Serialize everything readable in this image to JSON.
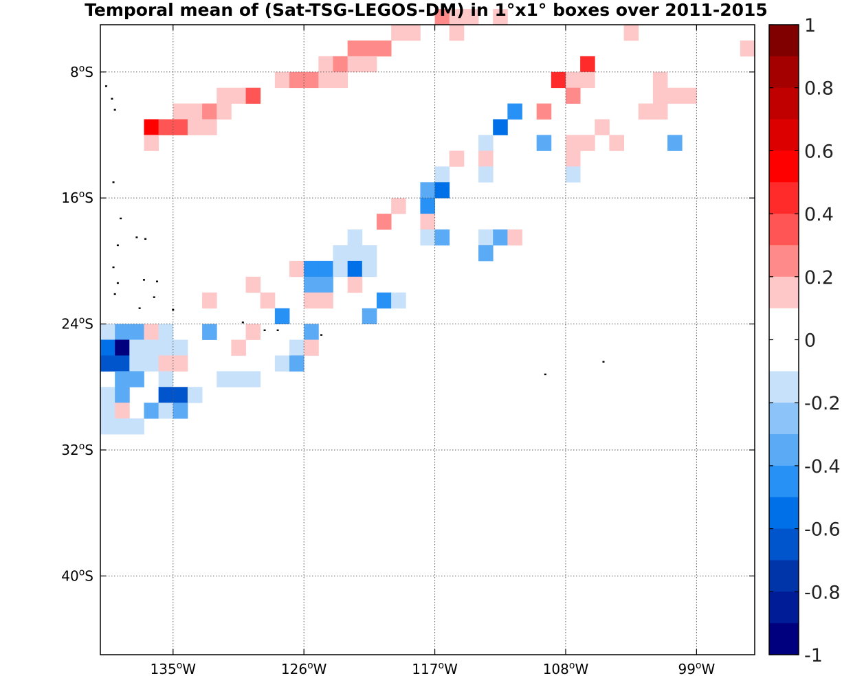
{
  "chart_data": {
    "type": "heatmap",
    "title": "Temporal mean of (Sat-TSG-LEGOS-DM) in 1°x1° boxes over 2011-2015",
    "xlabel": "",
    "ylabel": "",
    "xlim": [
      -140,
      -95
    ],
    "ylim": [
      -45,
      -5
    ],
    "grid": true,
    "x_ticks": [
      {
        "value": -135,
        "label": "135",
        "sup": "o",
        "suffix": "W"
      },
      {
        "value": -126,
        "label": "126",
        "sup": "o",
        "suffix": "W"
      },
      {
        "value": -117,
        "label": "117",
        "sup": "o",
        "suffix": "W"
      },
      {
        "value": -108,
        "label": "108",
        "sup": "o",
        "suffix": "W"
      },
      {
        "value": -99,
        "label": "99",
        "sup": "o",
        "suffix": "W"
      }
    ],
    "y_ticks": [
      {
        "value": -8,
        "label": "8",
        "sup": "o",
        "suffix": "S"
      },
      {
        "value": -16,
        "label": "16",
        "sup": "o",
        "suffix": "S"
      },
      {
        "value": -24,
        "label": "24",
        "sup": "o",
        "suffix": "S"
      },
      {
        "value": -32,
        "label": "32",
        "sup": "o",
        "suffix": "S"
      },
      {
        "value": -40,
        "label": "40",
        "sup": "o",
        "suffix": "S"
      }
    ],
    "colorbar": {
      "range": [
        -1,
        1
      ],
      "tick_labels": [
        "1",
        "0.8",
        "0.6",
        "0.4",
        "0.2",
        "0",
        "-0.2",
        "-0.4",
        "-0.6",
        "-0.8",
        "-1"
      ],
      "tick_values": [
        1,
        0.8,
        0.6,
        0.4,
        0.2,
        0,
        -0.2,
        -0.4,
        -0.6,
        -0.8,
        -1
      ],
      "colors": [
        "#800000",
        "#a40000",
        "#c00000",
        "#dc0000",
        "#ff0000",
        "#ff2a2a",
        "#ff5555",
        "#ff8a8a",
        "#ffc8c8",
        "#ffffff",
        "#ffffff",
        "#c8e1fa",
        "#8cc3f8",
        "#5aaaf5",
        "#2891f5",
        "#0070e8",
        "#0055cc",
        "#0035aa",
        "#001c96",
        "#00007f"
      ]
    },
    "cells": [
      {
        "lon": -117,
        "lat": -5,
        "value": 0.3
      },
      {
        "lon": -116,
        "lat": -5,
        "value": 0.15
      },
      {
        "lon": -115,
        "lat": -5,
        "value": 0.15
      },
      {
        "lon": -113,
        "lat": -5,
        "value": 0.15
      },
      {
        "lon": -116,
        "lat": -6,
        "value": 0.15
      },
      {
        "lon": -120,
        "lat": -6,
        "value": 0.15
      },
      {
        "lon": -119,
        "lat": -6,
        "value": 0.15
      },
      {
        "lon": -104,
        "lat": -6,
        "value": 0.15
      },
      {
        "lon": -123,
        "lat": -7,
        "value": 0.3
      },
      {
        "lon": -122,
        "lat": -7,
        "value": 0.3
      },
      {
        "lon": -121,
        "lat": -7,
        "value": 0.3
      },
      {
        "lon": -96,
        "lat": -7,
        "value": 0.15
      },
      {
        "lon": -125,
        "lat": -8,
        "value": 0.15
      },
      {
        "lon": -124,
        "lat": -8,
        "value": 0.3
      },
      {
        "lon": -123,
        "lat": -8,
        "value": 0.15
      },
      {
        "lon": -122,
        "lat": -8,
        "value": 0.15
      },
      {
        "lon": -107,
        "lat": -8,
        "value": 0.5
      },
      {
        "lon": -128,
        "lat": -9,
        "value": 0.15
      },
      {
        "lon": -127,
        "lat": -9,
        "value": 0.3
      },
      {
        "lon": -126,
        "lat": -9,
        "value": 0.3
      },
      {
        "lon": -125,
        "lat": -9,
        "value": 0.15
      },
      {
        "lon": -124,
        "lat": -9,
        "value": 0.15
      },
      {
        "lon": -109,
        "lat": -9,
        "value": 0.5
      },
      {
        "lon": -108,
        "lat": -9,
        "value": 0.15
      },
      {
        "lon": -107,
        "lat": -9,
        "value": 0.15
      },
      {
        "lon": -102,
        "lat": -9,
        "value": 0.15
      },
      {
        "lon": -132,
        "lat": -10,
        "value": 0.15
      },
      {
        "lon": -131,
        "lat": -10,
        "value": 0.15
      },
      {
        "lon": -130,
        "lat": -10,
        "value": 0.35
      },
      {
        "lon": -108,
        "lat": -10,
        "value": 0.3
      },
      {
        "lon": -102,
        "lat": -10,
        "value": 0.15
      },
      {
        "lon": -101,
        "lat": -10,
        "value": 0.15
      },
      {
        "lon": -100,
        "lat": -10,
        "value": 0.15
      },
      {
        "lon": -135,
        "lat": -11,
        "value": 0.15
      },
      {
        "lon": -134,
        "lat": -11,
        "value": 0.15
      },
      {
        "lon": -133,
        "lat": -11,
        "value": 0.3
      },
      {
        "lon": -132,
        "lat": -11,
        "value": 0.15
      },
      {
        "lon": -112,
        "lat": -11,
        "value": -0.4
      },
      {
        "lon": -110,
        "lat": -11,
        "value": 0.3
      },
      {
        "lon": -103,
        "lat": -11,
        "value": 0.15
      },
      {
        "lon": -102,
        "lat": -11,
        "value": 0.15
      },
      {
        "lon": -137,
        "lat": -12,
        "value": 0.55
      },
      {
        "lon": -136,
        "lat": -12,
        "value": 0.4
      },
      {
        "lon": -135,
        "lat": -12,
        "value": 0.35
      },
      {
        "lon": -134,
        "lat": -12,
        "value": 0.15
      },
      {
        "lon": -133,
        "lat": -12,
        "value": 0.15
      },
      {
        "lon": -113,
        "lat": -12,
        "value": -0.5
      },
      {
        "lon": -106,
        "lat": -12,
        "value": 0.15
      },
      {
        "lon": -137,
        "lat": -13,
        "value": 0.15
      },
      {
        "lon": -114,
        "lat": -13,
        "value": -0.1
      },
      {
        "lon": -110,
        "lat": -13,
        "value": -0.3
      },
      {
        "lon": -108,
        "lat": -13,
        "value": 0.15
      },
      {
        "lon": -107,
        "lat": -13,
        "value": 0.15
      },
      {
        "lon": -105,
        "lat": -13,
        "value": 0.15
      },
      {
        "lon": -101,
        "lat": -13,
        "value": -0.3
      },
      {
        "lon": -116,
        "lat": -14,
        "value": 0.15
      },
      {
        "lon": -114,
        "lat": -14,
        "value": 0.15
      },
      {
        "lon": -108,
        "lat": -14,
        "value": 0.15
      },
      {
        "lon": -117,
        "lat": -15,
        "value": -0.1
      },
      {
        "lon": -114,
        "lat": -15,
        "value": -0.1
      },
      {
        "lon": -108,
        "lat": -15,
        "value": -0.1
      },
      {
        "lon": -118,
        "lat": -16,
        "value": -0.3
      },
      {
        "lon": -117,
        "lat": -16,
        "value": -0.5
      },
      {
        "lon": -120,
        "lat": -17,
        "value": 0.15
      },
      {
        "lon": -118,
        "lat": -17,
        "value": -0.4
      },
      {
        "lon": -121,
        "lat": -18,
        "value": 0.3
      },
      {
        "lon": -118,
        "lat": -18,
        "value": 0.15
      },
      {
        "lon": -123,
        "lat": -19,
        "value": -0.1
      },
      {
        "lon": -118,
        "lat": -19,
        "value": -0.1
      },
      {
        "lon": -117,
        "lat": -19,
        "value": -0.3
      },
      {
        "lon": -114,
        "lat": -19,
        "value": -0.1
      },
      {
        "lon": -113,
        "lat": -19,
        "value": -0.3
      },
      {
        "lon": -112,
        "lat": -19,
        "value": 0.15
      },
      {
        "lon": -124,
        "lat": -20,
        "value": -0.1
      },
      {
        "lon": -123,
        "lat": -20,
        "value": -0.1
      },
      {
        "lon": -122,
        "lat": -20,
        "value": -0.1
      },
      {
        "lon": -114,
        "lat": -20,
        "value": -0.3
      },
      {
        "lon": -127,
        "lat": -21,
        "value": 0.15
      },
      {
        "lon": -126,
        "lat": -21,
        "value": -0.4
      },
      {
        "lon": -125,
        "lat": -21,
        "value": -0.4
      },
      {
        "lon": -124,
        "lat": -21,
        "value": -0.1
      },
      {
        "lon": -123,
        "lat": -21,
        "value": -0.5
      },
      {
        "lon": -122,
        "lat": -21,
        "value": -0.1
      },
      {
        "lon": -130,
        "lat": -22,
        "value": 0.15
      },
      {
        "lon": -126,
        "lat": -22,
        "value": -0.3
      },
      {
        "lon": -125,
        "lat": -22,
        "value": -0.3
      },
      {
        "lon": -123,
        "lat": -22,
        "value": 0.15
      },
      {
        "lon": -133,
        "lat": -23,
        "value": 0.15
      },
      {
        "lon": -129,
        "lat": -23,
        "value": 0.15
      },
      {
        "lon": -126,
        "lat": -23,
        "value": 0.15
      },
      {
        "lon": -125,
        "lat": -23,
        "value": 0.15
      },
      {
        "lon": -121,
        "lat": -23,
        "value": -0.4
      },
      {
        "lon": -120,
        "lat": -23,
        "value": -0.1
      },
      {
        "lon": -128,
        "lat": -24,
        "value": -0.4
      },
      {
        "lon": -122,
        "lat": -24,
        "value": -0.3
      },
      {
        "lon": -140,
        "lat": -25,
        "value": -0.1
      },
      {
        "lon": -139,
        "lat": -25,
        "value": -0.3
      },
      {
        "lon": -138,
        "lat": -25,
        "value": -0.3
      },
      {
        "lon": -137,
        "lat": -25,
        "value": 0.15
      },
      {
        "lon": -136,
        "lat": -25,
        "value": -0.1
      },
      {
        "lon": -133,
        "lat": -25,
        "value": -0.3
      },
      {
        "lon": -130,
        "lat": -25,
        "value": 0.15
      },
      {
        "lon": -126,
        "lat": -25,
        "value": -0.3
      },
      {
        "lon": -140,
        "lat": -26,
        "value": -0.5
      },
      {
        "lon": -139,
        "lat": -26,
        "value": -0.95
      },
      {
        "lon": -138,
        "lat": -26,
        "value": -0.1
      },
      {
        "lon": -137,
        "lat": -26,
        "value": -0.1
      },
      {
        "lon": -136,
        "lat": -26,
        "value": -0.1
      },
      {
        "lon": -135,
        "lat": -26,
        "value": -0.1
      },
      {
        "lon": -131,
        "lat": -26,
        "value": 0.15
      },
      {
        "lon": -127,
        "lat": -26,
        "value": -0.1
      },
      {
        "lon": -126,
        "lat": -26,
        "value": 0.15
      },
      {
        "lon": -140,
        "lat": -27,
        "value": -0.6
      },
      {
        "lon": -139,
        "lat": -27,
        "value": -0.65
      },
      {
        "lon": -138,
        "lat": -27,
        "value": -0.1
      },
      {
        "lon": -137,
        "lat": -27,
        "value": -0.1
      },
      {
        "lon": -136,
        "lat": -27,
        "value": 0.15
      },
      {
        "lon": -135,
        "lat": -27,
        "value": 0.15
      },
      {
        "lon": -128,
        "lat": -27,
        "value": -0.1
      },
      {
        "lon": -127,
        "lat": -27,
        "value": -0.3
      },
      {
        "lon": -139,
        "lat": -28,
        "value": -0.3
      },
      {
        "lon": -138,
        "lat": -28,
        "value": -0.3
      },
      {
        "lon": -136,
        "lat": -28,
        "value": -0.1
      },
      {
        "lon": -132,
        "lat": -28,
        "value": -0.1
      },
      {
        "lon": -131,
        "lat": -28,
        "value": -0.1
      },
      {
        "lon": -130,
        "lat": -28,
        "value": -0.1
      },
      {
        "lon": -140,
        "lat": -29,
        "value": -0.1
      },
      {
        "lon": -139,
        "lat": -29,
        "value": -0.3
      },
      {
        "lon": -136,
        "lat": -29,
        "value": -0.6
      },
      {
        "lon": -135,
        "lat": -29,
        "value": -0.65
      },
      {
        "lon": -134,
        "lat": -29,
        "value": -0.1
      },
      {
        "lon": -140,
        "lat": -30,
        "value": -0.1
      },
      {
        "lon": -139,
        "lat": -30,
        "value": 0.15
      },
      {
        "lon": -137,
        "lat": -30,
        "value": -0.3
      },
      {
        "lon": -136,
        "lat": -30,
        "value": -0.1
      },
      {
        "lon": -135,
        "lat": -30,
        "value": -0.3
      },
      {
        "lon": -140,
        "lat": -31,
        "value": -0.1
      },
      {
        "lon": -139,
        "lat": -31,
        "value": -0.1
      },
      {
        "lon": -138,
        "lat": -31,
        "value": -0.1
      }
    ],
    "islands": [
      {
        "lon": -139.6,
        "lat": -8.9
      },
      {
        "lon": -139.2,
        "lat": -9.7
      },
      {
        "lon": -139.0,
        "lat": -10.4
      },
      {
        "lon": -139.1,
        "lat": -15.0
      },
      {
        "lon": -138.6,
        "lat": -17.3
      },
      {
        "lon": -138.8,
        "lat": -19.0
      },
      {
        "lon": -137.5,
        "lat": -18.5
      },
      {
        "lon": -136.9,
        "lat": -18.6
      },
      {
        "lon": -139.1,
        "lat": -20.4
      },
      {
        "lon": -138.8,
        "lat": -21.4
      },
      {
        "lon": -139.0,
        "lat": -22.1
      },
      {
        "lon": -137.0,
        "lat": -21.2
      },
      {
        "lon": -136.1,
        "lat": -21.3
      },
      {
        "lon": -136.3,
        "lat": -22.3
      },
      {
        "lon": -137.3,
        "lat": -23.0
      },
      {
        "lon": -135.0,
        "lat": -23.1
      },
      {
        "lon": -130.2,
        "lat": -23.9
      },
      {
        "lon": -128.7,
        "lat": -24.4
      },
      {
        "lon": -127.8,
        "lat": -24.4
      },
      {
        "lon": -124.8,
        "lat": -24.7
      },
      {
        "lon": -109.4,
        "lat": -27.2
      },
      {
        "lon": -105.4,
        "lat": -26.4
      }
    ]
  }
}
